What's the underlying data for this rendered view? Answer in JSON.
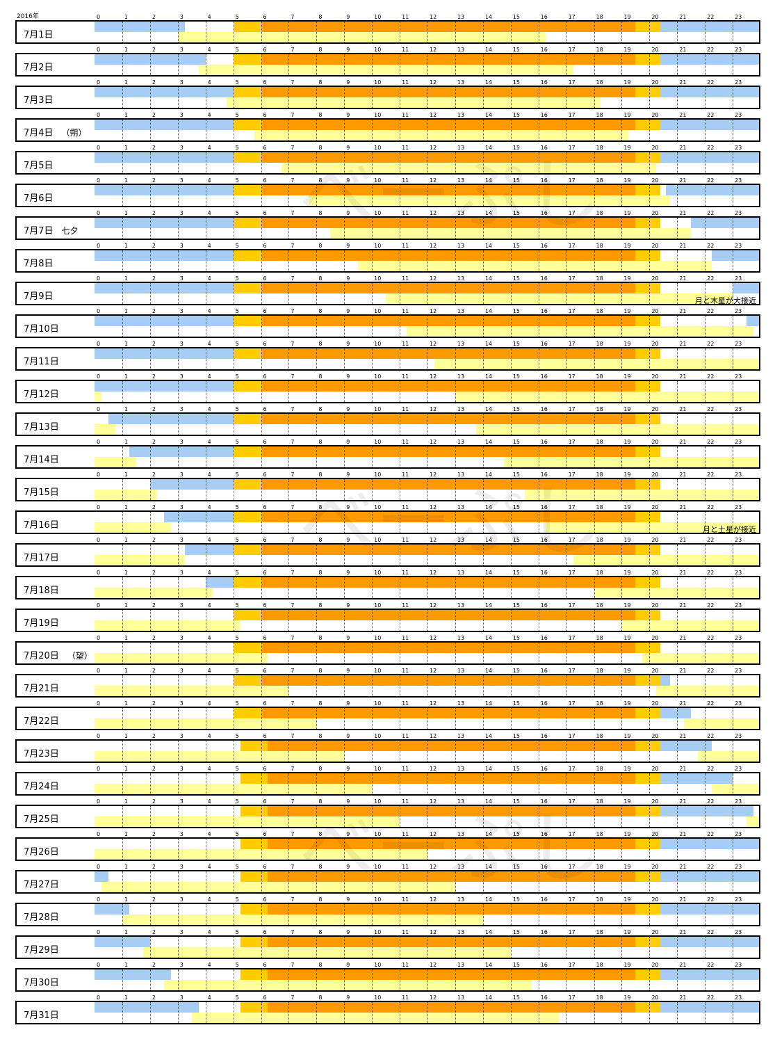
{
  "year_label": "2016年",
  "hours": [
    "0",
    "1",
    "2",
    "3",
    "4",
    "5",
    "6",
    "7",
    "8",
    "9",
    "10",
    "11",
    "12",
    "13",
    "14",
    "15",
    "16",
    "17",
    "18",
    "19",
    "20",
    "21",
    "22",
    "23"
  ],
  "watermark": "べーぷし",
  "colors": {
    "night": "#a7cdf5",
    "twilight": "#ffcc00",
    "day": "#ff9900",
    "moon": "#ffff99",
    "border": "#000000"
  },
  "chart_data": {
    "type": "table",
    "title": "",
    "x_axis": "hour of day (0-23)",
    "series": [
      {
        "name": "night"
      },
      {
        "name": "twilight"
      },
      {
        "name": "day"
      },
      {
        "name": "moon"
      }
    ],
    "days": [
      {
        "date": "7月1日",
        "note": "",
        "event": "",
        "moon": [
          [
            3.0,
            16.25
          ]
        ],
        "night": [
          [
            0,
            3.25
          ],
          [
            20.4,
            24
          ]
        ],
        "twilight_am": [
          5.0,
          6.0
        ],
        "day": [
          6.0,
          19.5
        ],
        "twilight_pm": [
          19.5,
          20.4
        ]
      },
      {
        "date": "7月2日",
        "note": "",
        "event": "",
        "moon": [
          [
            3.75,
            17.25
          ]
        ],
        "night": [
          [
            0,
            4.0
          ],
          [
            20.4,
            24
          ]
        ],
        "twilight_am": [
          5.0,
          6.0
        ],
        "day": [
          6.0,
          19.5
        ],
        "twilight_pm": [
          19.5,
          20.4
        ]
      },
      {
        "date": "7月3日",
        "note": "",
        "event": "",
        "moon": [
          [
            4.75,
            18.25
          ]
        ],
        "night": [
          [
            0,
            5.0
          ],
          [
            20.4,
            24
          ]
        ],
        "twilight_am": [
          5.0,
          6.0
        ],
        "day": [
          6.0,
          19.5
        ],
        "twilight_pm": [
          19.5,
          20.4
        ]
      },
      {
        "date": "7月4日",
        "note": "（朔）",
        "event": "",
        "moon": [
          [
            5.75,
            19.25
          ]
        ],
        "night": [
          [
            0,
            5.0
          ],
          [
            20.4,
            24
          ]
        ],
        "twilight_am": [
          5.0,
          6.0
        ],
        "day": [
          6.0,
          19.5
        ],
        "twilight_pm": [
          19.5,
          20.4
        ]
      },
      {
        "date": "7月5日",
        "note": "",
        "event": "",
        "moon": [
          [
            6.75,
            20.25
          ]
        ],
        "night": [
          [
            0,
            5.0
          ],
          [
            20.4,
            24
          ]
        ],
        "twilight_am": [
          5.0,
          6.0
        ],
        "day": [
          6.0,
          19.5
        ],
        "twilight_pm": [
          19.5,
          20.4
        ]
      },
      {
        "date": "7月6日",
        "note": "",
        "event": "",
        "moon": [
          [
            7.75,
            20.75
          ]
        ],
        "night": [
          [
            0,
            5.0
          ],
          [
            20.6,
            24
          ]
        ],
        "twilight_am": [
          5.0,
          6.0
        ],
        "day": [
          6.0,
          19.5
        ],
        "twilight_pm": [
          19.5,
          20.4
        ]
      },
      {
        "date": "7月7日",
        "note": "七夕",
        "event": "",
        "moon": [
          [
            8.5,
            21.5
          ]
        ],
        "night": [
          [
            0,
            5.0
          ],
          [
            21.5,
            24
          ]
        ],
        "twilight_am": [
          5.0,
          6.0
        ],
        "day": [
          6.0,
          19.5
        ],
        "twilight_pm": [
          19.5,
          20.4
        ]
      },
      {
        "date": "7月8日",
        "note": "",
        "event": "",
        "moon": [
          [
            9.5,
            22.25
          ]
        ],
        "night": [
          [
            0,
            5.0
          ],
          [
            22.25,
            24
          ]
        ],
        "twilight_am": [
          5.0,
          6.0
        ],
        "day": [
          6.0,
          19.5
        ],
        "twilight_pm": [
          19.5,
          20.4
        ]
      },
      {
        "date": "7月9日",
        "note": "",
        "event": "月と木星が大接近",
        "moon": [
          [
            10.5,
            23.0
          ]
        ],
        "night": [
          [
            0,
            5.0
          ],
          [
            23.0,
            24
          ]
        ],
        "twilight_am": [
          5.0,
          6.0
        ],
        "day": [
          6.0,
          19.5
        ],
        "twilight_pm": [
          19.5,
          20.4
        ]
      },
      {
        "date": "7月10日",
        "note": "",
        "event": "",
        "moon": [
          [
            11.25,
            23.75
          ]
        ],
        "night": [
          [
            0,
            5.0
          ],
          [
            23.5,
            24
          ]
        ],
        "twilight_am": [
          5.0,
          6.0
        ],
        "day": [
          6.0,
          19.5
        ],
        "twilight_pm": [
          19.5,
          20.4
        ]
      },
      {
        "date": "7月11日",
        "note": "",
        "event": "",
        "moon": [
          [
            12.25,
            24
          ]
        ],
        "night": [
          [
            0,
            5.0
          ]
        ],
        "twilight_am": [
          5.0,
          6.0
        ],
        "day": [
          6.0,
          19.5
        ],
        "twilight_pm": [
          19.5,
          20.4
        ]
      },
      {
        "date": "7月12日",
        "note": "",
        "event": "",
        "moon": [
          [
            0,
            0.25
          ],
          [
            13.0,
            24
          ]
        ],
        "night": [
          [
            0,
            5.0
          ]
        ],
        "twilight_am": [
          5.0,
          6.0
        ],
        "day": [
          6.0,
          19.5
        ],
        "twilight_pm": [
          19.5,
          20.4
        ]
      },
      {
        "date": "7月13日",
        "note": "",
        "event": "",
        "moon": [
          [
            0,
            0.75
          ],
          [
            13.75,
            24
          ]
        ],
        "night": [
          [
            0.5,
            5.0
          ]
        ],
        "twilight_am": [
          5.0,
          6.0
        ],
        "day": [
          6.0,
          19.5
        ],
        "twilight_pm": [
          19.5,
          20.4
        ]
      },
      {
        "date": "7月14日",
        "note": "",
        "event": "",
        "moon": [
          [
            0,
            1.5
          ],
          [
            14.75,
            24
          ]
        ],
        "night": [
          [
            1.25,
            5.0
          ]
        ],
        "twilight_am": [
          5.0,
          6.0
        ],
        "day": [
          6.0,
          19.5
        ],
        "twilight_pm": [
          19.5,
          20.4
        ]
      },
      {
        "date": "7月15日",
        "note": "",
        "event": "",
        "moon": [
          [
            0,
            2.25
          ],
          [
            15.5,
            24
          ]
        ],
        "night": [
          [
            2.0,
            5.0
          ]
        ],
        "twilight_am": [
          5.0,
          6.0
        ],
        "day": [
          6.0,
          19.5
        ],
        "twilight_pm": [
          19.5,
          20.4
        ]
      },
      {
        "date": "7月16日",
        "note": "",
        "event": "月と土星が接近",
        "moon": [
          [
            0,
            2.75
          ],
          [
            16.25,
            24
          ]
        ],
        "night": [
          [
            2.5,
            5.0
          ]
        ],
        "twilight_am": [
          5.0,
          6.0
        ],
        "day": [
          6.0,
          19.5
        ],
        "twilight_pm": [
          19.5,
          20.4
        ]
      },
      {
        "date": "7月17日",
        "note": "",
        "event": "",
        "moon": [
          [
            0,
            3.25
          ],
          [
            17.25,
            24
          ]
        ],
        "night": [
          [
            3.25,
            5.0
          ]
        ],
        "twilight_am": [
          5.0,
          6.0
        ],
        "day": [
          6.0,
          19.5
        ],
        "twilight_pm": [
          19.5,
          20.4
        ]
      },
      {
        "date": "7月18日",
        "note": "",
        "event": "",
        "moon": [
          [
            0,
            4.25
          ],
          [
            18.0,
            24
          ]
        ],
        "night": [
          [
            4.0,
            5.0
          ]
        ],
        "twilight_am": [
          5.0,
          6.0
        ],
        "day": [
          6.0,
          19.5
        ],
        "twilight_pm": [
          19.5,
          20.4
        ]
      },
      {
        "date": "7月19日",
        "note": "",
        "event": "",
        "moon": [
          [
            0,
            5.25
          ],
          [
            19.0,
            24
          ]
        ],
        "night": [],
        "twilight_am": [
          5.0,
          6.0
        ],
        "day": [
          6.0,
          19.5
        ],
        "twilight_pm": [
          19.5,
          20.4
        ]
      },
      {
        "date": "7月20日",
        "note": "（望）",
        "event": "",
        "moon": [
          [
            0,
            6.25
          ],
          [
            19.75,
            24
          ]
        ],
        "night": [],
        "twilight_am": [
          5.0,
          6.0
        ],
        "day": [
          6.0,
          19.5
        ],
        "twilight_pm": [
          19.5,
          20.4
        ]
      },
      {
        "date": "7月21日",
        "note": "",
        "event": "",
        "moon": [
          [
            0,
            7.0
          ],
          [
            20.25,
            24
          ]
        ],
        "night": [
          [
            20.4,
            20.75
          ]
        ],
        "twilight_am": [
          5.0,
          6.0
        ],
        "day": [
          6.0,
          19.5
        ],
        "twilight_pm": [
          19.5,
          20.4
        ]
      },
      {
        "date": "7月22日",
        "note": "",
        "event": "",
        "moon": [
          [
            0,
            8.0
          ],
          [
            21.25,
            24
          ]
        ],
        "night": [
          [
            20.4,
            21.5
          ]
        ],
        "twilight_am": [
          5.0,
          6.0
        ],
        "day": [
          6.0,
          19.5
        ],
        "twilight_pm": [
          19.5,
          20.4
        ]
      },
      {
        "date": "7月23日",
        "note": "",
        "event": "",
        "moon": [
          [
            0,
            9.0
          ],
          [
            21.75,
            24
          ]
        ],
        "night": [
          [
            20.4,
            22.25
          ]
        ],
        "twilight_am": [
          5.25,
          6.25
        ],
        "day": [
          6.25,
          19.5
        ],
        "twilight_pm": [
          19.5,
          20.4
        ]
      },
      {
        "date": "7月24日",
        "note": "",
        "event": "",
        "moon": [
          [
            0,
            10.0
          ],
          [
            22.25,
            24
          ]
        ],
        "night": [
          [
            20.4,
            23.0
          ]
        ],
        "twilight_am": [
          5.25,
          6.25
        ],
        "day": [
          6.25,
          19.5
        ],
        "twilight_pm": [
          19.5,
          20.4
        ]
      },
      {
        "date": "7月25日",
        "note": "",
        "event": "",
        "moon": [
          [
            0,
            11.0
          ],
          [
            23.5,
            24
          ]
        ],
        "night": [
          [
            20.4,
            23.75
          ]
        ],
        "twilight_am": [
          5.25,
          6.25
        ],
        "day": [
          6.25,
          19.5
        ],
        "twilight_pm": [
          19.5,
          20.4
        ]
      },
      {
        "date": "7月26日",
        "note": "",
        "event": "",
        "moon": [
          [
            0,
            12.0
          ]
        ],
        "night": [
          [
            20.4,
            24
          ]
        ],
        "twilight_am": [
          5.25,
          6.25
        ],
        "day": [
          6.25,
          19.5
        ],
        "twilight_pm": [
          19.5,
          20.4
        ]
      },
      {
        "date": "7月27日",
        "note": "",
        "event": "",
        "moon": [
          [
            0.25,
            13.0
          ]
        ],
        "night": [
          [
            0,
            0.5
          ],
          [
            20.4,
            24
          ]
        ],
        "twilight_am": [
          5.25,
          6.25
        ],
        "day": [
          6.25,
          19.5
        ],
        "twilight_pm": [
          19.5,
          20.4
        ]
      },
      {
        "date": "7月28日",
        "note": "",
        "event": "",
        "moon": [
          [
            1.0,
            14.0
          ]
        ],
        "night": [
          [
            0,
            1.25
          ],
          [
            20.4,
            24
          ]
        ],
        "twilight_am": [
          5.25,
          6.25
        ],
        "day": [
          6.25,
          19.5
        ],
        "twilight_pm": [
          19.5,
          20.4
        ]
      },
      {
        "date": "7月29日",
        "note": "",
        "event": "",
        "moon": [
          [
            1.75,
            15.0
          ]
        ],
        "night": [
          [
            0,
            2.0
          ],
          [
            20.4,
            24
          ]
        ],
        "twilight_am": [
          5.25,
          6.25
        ],
        "day": [
          6.25,
          19.5
        ],
        "twilight_pm": [
          19.5,
          20.4
        ]
      },
      {
        "date": "7月30日",
        "note": "",
        "event": "",
        "moon": [
          [
            2.5,
            15.75
          ]
        ],
        "night": [
          [
            0,
            2.75
          ],
          [
            20.4,
            24
          ]
        ],
        "twilight_am": [
          5.25,
          6.25
        ],
        "day": [
          6.25,
          19.5
        ],
        "twilight_pm": [
          19.5,
          20.4
        ]
      },
      {
        "date": "7月31日",
        "note": "",
        "event": "",
        "moon": [
          [
            3.5,
            16.75
          ]
        ],
        "night": [
          [
            0,
            3.75
          ],
          [
            20.4,
            24
          ]
        ],
        "twilight_am": [
          5.25,
          6.25
        ],
        "day": [
          6.25,
          19.5
        ],
        "twilight_pm": [
          19.5,
          20.4
        ]
      }
    ]
  }
}
